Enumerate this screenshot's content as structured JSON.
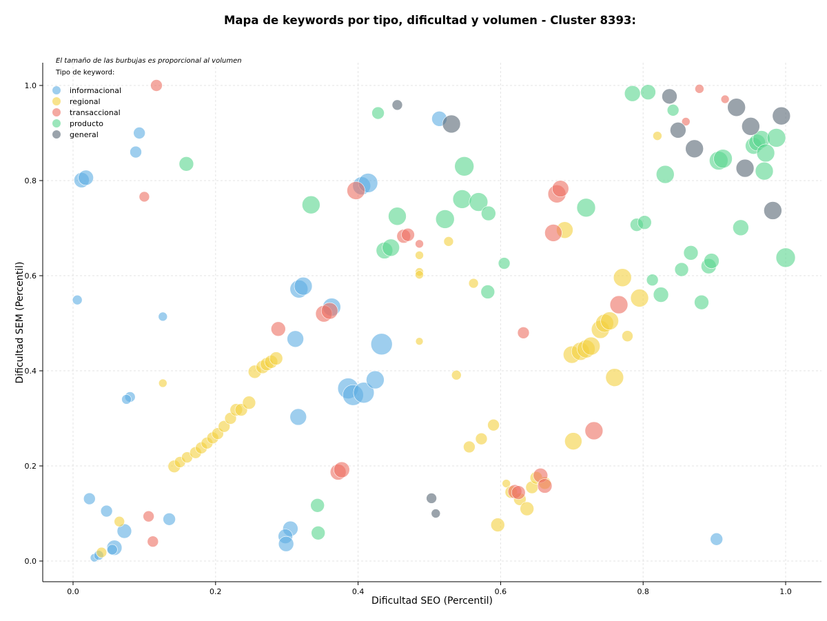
{
  "chart_data": {
    "type": "scatter",
    "title": "Mapa de keywords por tipo, dificultad y volumen - Cluster 8393:",
    "xlabel": "Dificultad SEO (Percentil)",
    "ylabel": "Dificultad SEM (Percentil)",
    "xlim": [
      -0.04,
      1.05
    ],
    "ylim": [
      -0.045,
      1.05
    ],
    "xticks": [
      "0.0",
      "0.2",
      "0.4",
      "0.6",
      "0.8",
      "1.0"
    ],
    "yticks": [
      "0.0",
      "0.2",
      "0.4",
      "0.6",
      "0.8",
      "1.0"
    ],
    "grid": true,
    "legend_position": "top-left",
    "legend_title": "Tipo de keyword:",
    "annotation": "El tamaño de las burbujas es proporcional al volumen",
    "series": [
      {
        "name": "informacional",
        "color": "#5dade2",
        "points": [
          [
            0.012,
            0.801,
            22
          ],
          [
            0.018,
            0.806,
            22
          ],
          [
            0.006,
            0.549,
            14
          ],
          [
            0.093,
            0.9,
            17
          ],
          [
            0.088,
            0.86,
            17
          ],
          [
            0.126,
            0.514,
            13
          ],
          [
            0.023,
            0.131,
            17
          ],
          [
            0.047,
            0.105,
            17
          ],
          [
            0.072,
            0.063,
            21
          ],
          [
            0.058,
            0.028,
            22
          ],
          [
            0.055,
            0.024,
            15
          ],
          [
            0.03,
            0.007,
            12
          ],
          [
            0.036,
            0.012,
            14
          ],
          [
            0.08,
            0.345,
            15
          ],
          [
            0.075,
            0.34,
            14
          ],
          [
            0.135,
            0.088,
            18
          ],
          [
            0.317,
            0.572,
            26
          ],
          [
            0.323,
            0.578,
            26
          ],
          [
            0.363,
            0.534,
            26
          ],
          [
            0.312,
            0.467,
            24
          ],
          [
            0.316,
            0.303,
            24
          ],
          [
            0.305,
            0.068,
            22
          ],
          [
            0.298,
            0.052,
            21
          ],
          [
            0.299,
            0.036,
            22
          ],
          [
            0.386,
            0.363,
            30
          ],
          [
            0.393,
            0.349,
            30
          ],
          [
            0.408,
            0.354,
            30
          ],
          [
            0.424,
            0.381,
            26
          ],
          [
            0.433,
            0.456,
            31
          ],
          [
            0.405,
            0.789,
            26
          ],
          [
            0.414,
            0.795,
            28
          ],
          [
            0.514,
            0.93,
            22
          ],
          [
            0.903,
            0.046,
            18
          ]
        ]
      },
      {
        "name": "regional",
        "color": "#f4d03f",
        "points": [
          [
            0.04,
            0.018,
            15
          ],
          [
            0.065,
            0.083,
            15
          ],
          [
            0.126,
            0.374,
            12
          ],
          [
            0.142,
            0.199,
            18
          ],
          [
            0.15,
            0.208,
            16
          ],
          [
            0.16,
            0.218,
            16
          ],
          [
            0.172,
            0.228,
            17
          ],
          [
            0.18,
            0.238,
            17
          ],
          [
            0.188,
            0.248,
            17
          ],
          [
            0.196,
            0.259,
            17
          ],
          [
            0.203,
            0.268,
            17
          ],
          [
            0.212,
            0.283,
            17
          ],
          [
            0.221,
            0.3,
            17
          ],
          [
            0.229,
            0.318,
            18
          ],
          [
            0.236,
            0.318,
            18
          ],
          [
            0.247,
            0.333,
            19
          ],
          [
            0.255,
            0.398,
            19
          ],
          [
            0.266,
            0.408,
            19
          ],
          [
            0.272,
            0.414,
            19
          ],
          [
            0.278,
            0.419,
            19
          ],
          [
            0.285,
            0.426,
            19
          ],
          [
            0.486,
            0.643,
            12
          ],
          [
            0.486,
            0.608,
            12
          ],
          [
            0.486,
            0.602,
            12
          ],
          [
            0.486,
            0.462,
            11
          ],
          [
            0.527,
            0.672,
            14
          ],
          [
            0.538,
            0.391,
            14
          ],
          [
            0.556,
            0.24,
            17
          ],
          [
            0.562,
            0.584,
            14
          ],
          [
            0.573,
            0.257,
            17
          ],
          [
            0.59,
            0.286,
            17
          ],
          [
            0.596,
            0.076,
            20
          ],
          [
            0.608,
            0.163,
            12
          ],
          [
            0.615,
            0.145,
            18
          ],
          [
            0.627,
            0.13,
            18
          ],
          [
            0.637,
            0.11,
            20
          ],
          [
            0.644,
            0.155,
            18
          ],
          [
            0.65,
            0.175,
            18
          ],
          [
            0.662,
            0.164,
            18
          ],
          [
            0.69,
            0.696,
            24
          ],
          [
            0.7,
            0.434,
            25
          ],
          [
            0.702,
            0.252,
            25
          ],
          [
            0.712,
            0.441,
            26
          ],
          [
            0.72,
            0.446,
            26
          ],
          [
            0.727,
            0.452,
            26
          ],
          [
            0.74,
            0.487,
            26
          ],
          [
            0.746,
            0.5,
            26
          ],
          [
            0.753,
            0.505,
            26
          ],
          [
            0.76,
            0.386,
            26
          ],
          [
            0.771,
            0.596,
            26
          ],
          [
            0.778,
            0.473,
            16
          ],
          [
            0.795,
            0.553,
            26
          ],
          [
            0.82,
            0.894,
            13
          ]
        ]
      },
      {
        "name": "transaccional",
        "color": "#ec7063",
        "points": [
          [
            0.117,
            1.0,
            17
          ],
          [
            0.1,
            0.766,
            15
          ],
          [
            0.106,
            0.094,
            16
          ],
          [
            0.112,
            0.041,
            16
          ],
          [
            0.288,
            0.488,
            21
          ],
          [
            0.352,
            0.52,
            24
          ],
          [
            0.36,
            0.526,
            24
          ],
          [
            0.372,
            0.187,
            23
          ],
          [
            0.377,
            0.192,
            23
          ],
          [
            0.397,
            0.779,
            26
          ],
          [
            0.464,
            0.683,
            20
          ],
          [
            0.47,
            0.686,
            19
          ],
          [
            0.486,
            0.667,
            12
          ],
          [
            0.632,
            0.48,
            17
          ],
          [
            0.62,
            0.146,
            20
          ],
          [
            0.625,
            0.144,
            20
          ],
          [
            0.656,
            0.18,
            21
          ],
          [
            0.662,
            0.158,
            21
          ],
          [
            0.674,
            0.69,
            25
          ],
          [
            0.679,
            0.772,
            26
          ],
          [
            0.684,
            0.783,
            24
          ],
          [
            0.731,
            0.274,
            26
          ],
          [
            0.766,
            0.539,
            26
          ],
          [
            0.86,
            0.924,
            12
          ],
          [
            0.879,
            0.993,
            13
          ],
          [
            0.915,
            0.971,
            12
          ]
        ]
      },
      {
        "name": "producto",
        "color": "#58d68d",
        "points": [
          [
            0.159,
            0.835,
            21
          ],
          [
            0.334,
            0.749,
            26
          ],
          [
            0.343,
            0.117,
            20
          ],
          [
            0.344,
            0.059,
            20
          ],
          [
            0.428,
            0.942,
            18
          ],
          [
            0.437,
            0.653,
            24
          ],
          [
            0.446,
            0.659,
            25
          ],
          [
            0.455,
            0.725,
            26
          ],
          [
            0.522,
            0.719,
            27
          ],
          [
            0.549,
            0.83,
            28
          ],
          [
            0.546,
            0.761,
            27
          ],
          [
            0.569,
            0.755,
            27
          ],
          [
            0.583,
            0.731,
            21
          ],
          [
            0.582,
            0.566,
            20
          ],
          [
            0.605,
            0.626,
            17
          ],
          [
            0.72,
            0.743,
            27
          ],
          [
            0.785,
            0.983,
            23
          ],
          [
            0.807,
            0.986,
            22
          ],
          [
            0.791,
            0.707,
            19
          ],
          [
            0.802,
            0.712,
            20
          ],
          [
            0.813,
            0.591,
            17
          ],
          [
            0.825,
            0.56,
            22
          ],
          [
            0.831,
            0.813,
            26
          ],
          [
            0.842,
            0.948,
            17
          ],
          [
            0.854,
            0.613,
            20
          ],
          [
            0.867,
            0.648,
            21
          ],
          [
            0.882,
            0.544,
            21
          ],
          [
            0.892,
            0.62,
            22
          ],
          [
            0.896,
            0.631,
            22
          ],
          [
            0.906,
            0.842,
            27
          ],
          [
            0.912,
            0.846,
            27
          ],
          [
            0.937,
            0.701,
            23
          ],
          [
            0.955,
            0.873,
            24
          ],
          [
            0.96,
            0.88,
            24
          ],
          [
            0.966,
            0.887,
            25
          ],
          [
            0.972,
            0.858,
            26
          ],
          [
            0.97,
            0.82,
            26
          ],
          [
            0.987,
            0.89,
            27
          ],
          [
            1.0,
            0.638,
            28
          ]
        ]
      },
      {
        "name": "general",
        "color": "#566573",
        "points": [
          [
            0.455,
            0.959,
            15
          ],
          [
            0.531,
            0.919,
            26
          ],
          [
            0.503,
            0.132,
            15
          ],
          [
            0.509,
            0.1,
            13
          ],
          [
            0.837,
            0.977,
            22
          ],
          [
            0.849,
            0.906,
            23
          ],
          [
            0.872,
            0.867,
            26
          ],
          [
            0.931,
            0.954,
            26
          ],
          [
            0.943,
            0.826,
            26
          ],
          [
            0.951,
            0.914,
            26
          ],
          [
            0.994,
            0.936,
            26
          ],
          [
            0.982,
            0.737,
            26
          ]
        ]
      }
    ]
  }
}
